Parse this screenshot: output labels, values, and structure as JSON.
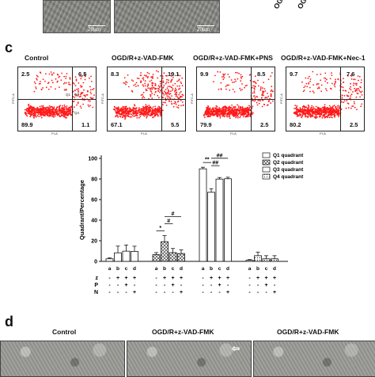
{
  "top_strip": {
    "scalebars": [
      "20μm",
      "20μm"
    ],
    "cropped_labels": [
      "OGD",
      "OGD"
    ]
  },
  "panel_c": {
    "letter": "c",
    "flow_plots": [
      {
        "title": "Control",
        "q1": "2.5",
        "q2": "6.5",
        "q3": "89.9",
        "q4": "1.1"
      },
      {
        "title": "OGD/R+z-VAD-FMK",
        "q1": "8.3",
        "q2": "19.1",
        "q3": "67.1",
        "q4": "5.5"
      },
      {
        "title": "OGD/R+z-VAD-FMK+PNS",
        "q1": "9.9",
        "q2": "8.5",
        "q3": "79.9",
        "q4": "2.5"
      },
      {
        "title": "OGD/R+z-VAD-FMK+Nec-1",
        "q1": "9.7",
        "q2": "7.6",
        "q3": "80.2",
        "q4": "2.5"
      }
    ],
    "flow_axis": {
      "y": "FITC-A",
      "x": "PI-A"
    },
    "quadrant_names": [
      "Q1",
      "Q2",
      "Q3",
      "Q4"
    ]
  },
  "chart_data": {
    "type": "bar",
    "ylabel": "Quadrant/Percentage",
    "ylim": [
      0,
      100
    ],
    "yticks": [
      0,
      20,
      40,
      60,
      80,
      100
    ],
    "legend_position": "top-right",
    "series": [
      {
        "name": "Q1 quadrant",
        "values": [
          2.5,
          8.3,
          9.9,
          9.7
        ],
        "errors": [
          0.8,
          6.5,
          6.0,
          5.0
        ]
      },
      {
        "name": "Q2 quadrant",
        "values": [
          6.5,
          19.1,
          8.5,
          7.6
        ],
        "errors": [
          2.0,
          6.0,
          4.0,
          3.5
        ]
      },
      {
        "name": "Q3 quadrant",
        "values": [
          89.9,
          67.1,
          79.9,
          80.2
        ],
        "errors": [
          1.5,
          3.5,
          1.5,
          1.5
        ]
      },
      {
        "name": "Q4 quadrant",
        "values": [
          1.1,
          5.5,
          2.5,
          2.5
        ],
        "errors": [
          0.6,
          3.5,
          3.0,
          3.0
        ]
      }
    ],
    "group_letters": [
      "a",
      "b",
      "c",
      "d"
    ],
    "treatment_rows": [
      {
        "label": "z",
        "marks": [
          "-",
          "+",
          "+",
          "+"
        ]
      },
      {
        "label": "P",
        "marks": [
          "-",
          "-",
          "+",
          "-"
        ]
      },
      {
        "label": "N",
        "marks": [
          "-",
          "-",
          "-",
          "+"
        ]
      }
    ],
    "significance": [
      {
        "series": 1,
        "from": 0,
        "to": 1,
        "label": "*"
      },
      {
        "series": 1,
        "from": 1,
        "to": 2,
        "label": "#"
      },
      {
        "series": 1,
        "from": 1,
        "to": 3,
        "label": "#"
      },
      {
        "series": 2,
        "from": 0,
        "to": 1,
        "label": "**"
      },
      {
        "series": 2,
        "from": 1,
        "to": 2,
        "label": "##"
      },
      {
        "series": 2,
        "from": 1,
        "to": 3,
        "label": "##"
      }
    ]
  },
  "panel_d": {
    "letter": "d",
    "titles": [
      "Control",
      "OGD/R+z-VAD-FMK",
      "OGD/R+z-VAD-FMK"
    ]
  }
}
